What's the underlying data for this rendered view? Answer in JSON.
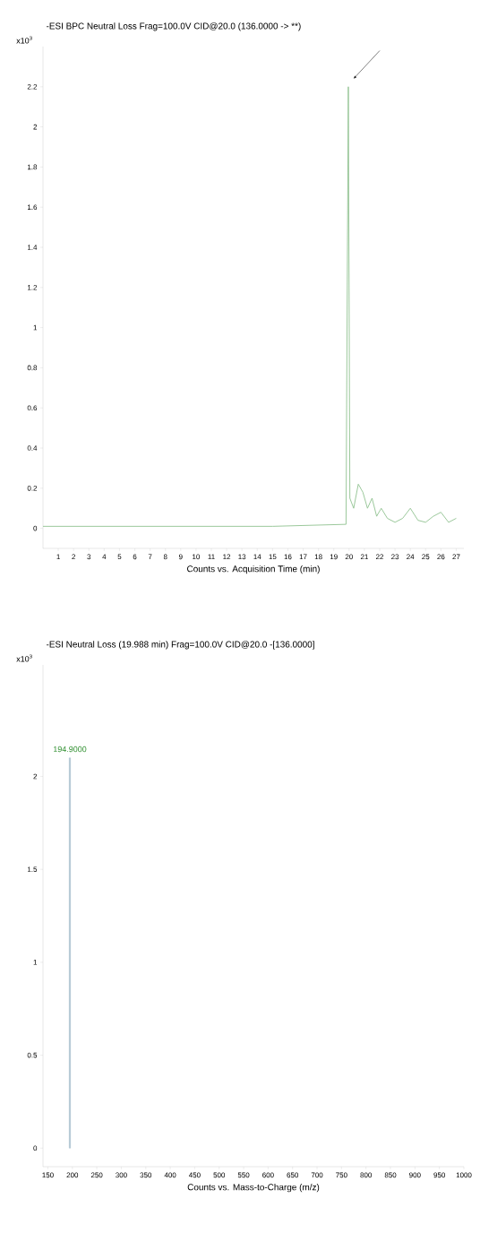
{
  "chart_data": [
    {
      "type": "line",
      "title": "-ESI BPC Neutral Loss Frag=100.0V CID@20.0 (136.0000 -> **)",
      "xlabel": "Counts vs. Acquisition Time (min)",
      "ylabel": "x10$^{3}$",
      "x": [
        0,
        5,
        10,
        15,
        19.8,
        19.95,
        20.05,
        20.3,
        20.6,
        20.9,
        21.2,
        21.5,
        21.8,
        22.1,
        22.5,
        23,
        23.5,
        24,
        24.5,
        25,
        25.5,
        26,
        26.5,
        27
      ],
      "values": [
        0.01,
        0.01,
        0.01,
        0.01,
        0.02,
        2.2,
        0.15,
        0.1,
        0.22,
        0.18,
        0.1,
        0.15,
        0.06,
        0.1,
        0.05,
        0.03,
        0.05,
        0.1,
        0.04,
        0.03,
        0.06,
        0.08,
        0.03,
        0.05
      ],
      "color": "#8fc28f",
      "xlim": [
        0,
        27.5
      ],
      "ylim": [
        -0.1,
        2.4
      ],
      "xticks": [
        1,
        2,
        3,
        4,
        5,
        6,
        7,
        8,
        9,
        10,
        11,
        12,
        13,
        14,
        15,
        16,
        17,
        18,
        19,
        20,
        21,
        22,
        23,
        24,
        25,
        26,
        27
      ],
      "yticks": [
        0,
        0.2,
        0.4,
        0.6,
        0.8,
        1,
        1.2,
        1.4,
        1.6,
        1.8,
        2,
        2.2
      ]
    },
    {
      "type": "bar",
      "title": "-ESI Neutral Loss (19.988 min) Frag=100.0V CID@20.0 -[136.0000]",
      "xlabel": "Counts vs. Mass-to-Charge (m/z)",
      "ylabel": "x10$^{3}$",
      "x": [
        194.9
      ],
      "values": [
        2.1
      ],
      "color": "#a9c0cf",
      "annotations": [
        {
          "text": "194.9000",
          "x": 194.9,
          "y": 2.1
        }
      ],
      "xlim": [
        140,
        1000
      ],
      "ylim": [
        -0.1,
        2.6
      ],
      "xticks": [
        150,
        200,
        250,
        300,
        350,
        400,
        450,
        500,
        550,
        600,
        650,
        700,
        750,
        800,
        850,
        900,
        950,
        1000
      ],
      "yticks": [
        0,
        0.5,
        1,
        1.5,
        2
      ]
    }
  ]
}
